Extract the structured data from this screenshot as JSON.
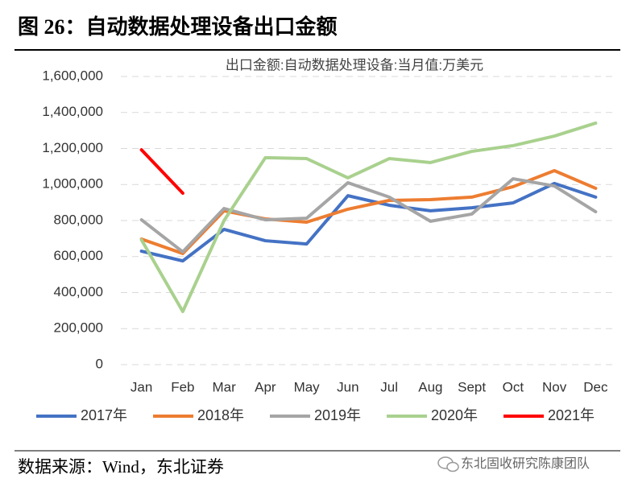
{
  "header": {
    "title": "图 26：自动数据处理设备出口金额"
  },
  "chart_data": {
    "type": "line",
    "title": "出口金额:自动数据处理设备:当月值:万美元",
    "categories": [
      "Jan",
      "Feb",
      "Mar",
      "Apr",
      "May",
      "Jun",
      "Jul",
      "Aug",
      "Sept",
      "Oct",
      "Nov",
      "Dec"
    ],
    "series": [
      {
        "name": "2017年",
        "color": "#4472c4",
        "values": [
          630000,
          576000,
          751000,
          688000,
          670000,
          938000,
          885000,
          854000,
          871000,
          898000,
          1006000,
          930000
        ]
      },
      {
        "name": "2018年",
        "color": "#ed7d31",
        "values": [
          697000,
          617000,
          854000,
          809000,
          791000,
          863000,
          912000,
          916000,
          930000,
          988000,
          1077000,
          979000
        ]
      },
      {
        "name": "2019年",
        "color": "#a5a5a5",
        "values": [
          804000,
          626000,
          867000,
          804000,
          813000,
          1010000,
          930000,
          796000,
          836000,
          1032000,
          992000,
          849000
        ]
      },
      {
        "name": "2020年",
        "color": "#a9d18e",
        "values": [
          693000,
          295000,
          800000,
          1149000,
          1144000,
          1037000,
          1144000,
          1122000,
          1184000,
          1216000,
          1269000,
          1341000
        ]
      },
      {
        "name": "2021年",
        "color": "#ff0000",
        "values": [
          1193000,
          952000,
          null,
          null,
          null,
          null,
          null,
          null,
          null,
          null,
          null,
          null
        ]
      }
    ],
    "ylim": [
      0,
      1600000
    ],
    "yticks": [
      0,
      {
        "value": 200000,
        "label": "200,000"
      },
      {
        "value": 400000,
        "label": "400,000"
      },
      {
        "value": 600000,
        "label": "600,000"
      },
      {
        "value": 800000,
        "label": "800,000"
      },
      {
        "value": 1000000,
        "label": "1,000,000"
      },
      {
        "value": 1200000,
        "label": "1,200,000"
      },
      {
        "value": 1400000,
        "label": "1,400,000"
      },
      {
        "value": 1600000,
        "label": "1,600,000"
      }
    ],
    "grid": true,
    "legend": "bottom"
  },
  "footer": {
    "source": "数据来源：Wind，东北证券",
    "watermark": "东北固收研究陈康团队"
  }
}
